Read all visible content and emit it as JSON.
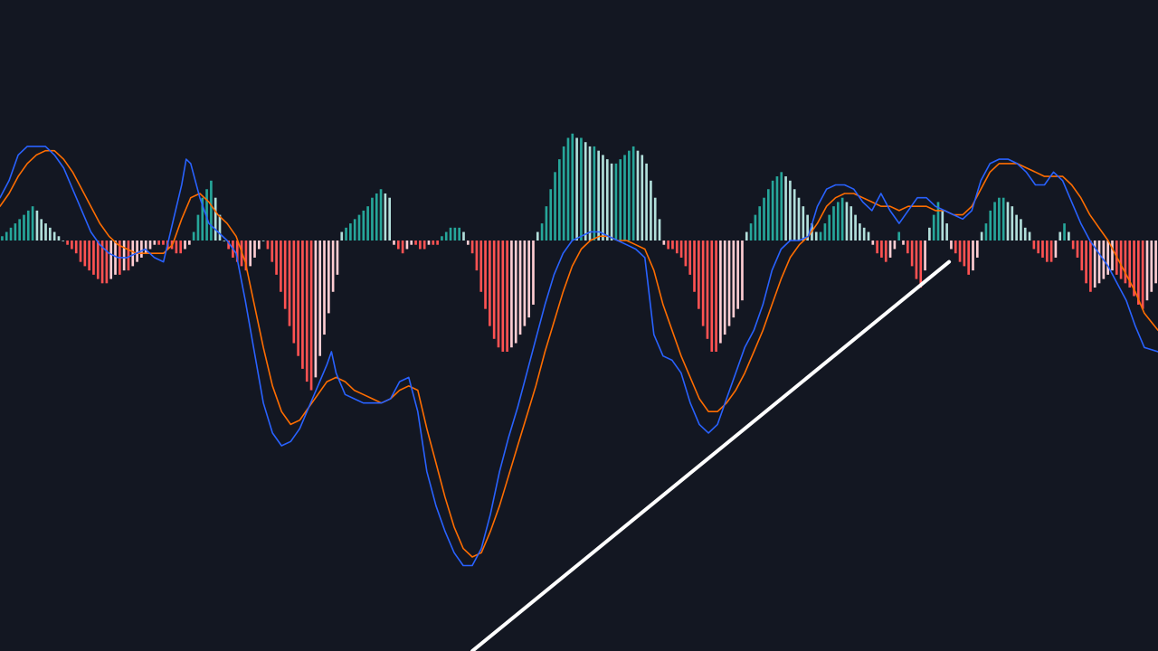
{
  "chart_data": {
    "type": "line",
    "indicator": "MACD",
    "title": "",
    "xlabel": "",
    "ylabel": "",
    "grid": false,
    "legend": "none",
    "colors": {
      "background": "#131722",
      "macd_line": "#2962ff",
      "signal_line": "#ff6d00",
      "hist_pos_strong": "#26a69a",
      "hist_pos_weak": "#b2dfdb",
      "hist_neg_strong": "#ff5252",
      "hist_neg_weak": "#ffcdd2",
      "trendline": "#ffffff"
    },
    "x_range": [
      0,
      255
    ],
    "y_range": [
      -100,
      30
    ],
    "series": [
      {
        "key": "macd",
        "points": [
          [
            0,
            10
          ],
          [
            2,
            14
          ],
          [
            4,
            20
          ],
          [
            6,
            22
          ],
          [
            8,
            22
          ],
          [
            10,
            22
          ],
          [
            12,
            20
          ],
          [
            14,
            17
          ],
          [
            16,
            12
          ],
          [
            18,
            7
          ],
          [
            20,
            2
          ],
          [
            22,
            -1
          ],
          [
            24,
            -3
          ],
          [
            26,
            -4
          ],
          [
            28,
            -4
          ],
          [
            30,
            -3
          ],
          [
            32,
            -2
          ],
          [
            34,
            -4
          ],
          [
            36,
            -5
          ],
          [
            38,
            4
          ],
          [
            40,
            13
          ],
          [
            41,
            19
          ],
          [
            42,
            18
          ],
          [
            44,
            10
          ],
          [
            46,
            4
          ],
          [
            48,
            2
          ],
          [
            50,
            0
          ],
          [
            52,
            -3
          ],
          [
            54,
            -14
          ],
          [
            56,
            -26
          ],
          [
            58,
            -38
          ],
          [
            60,
            -45
          ],
          [
            62,
            -48
          ],
          [
            64,
            -47
          ],
          [
            66,
            -44
          ],
          [
            68,
            -39
          ],
          [
            70,
            -34
          ],
          [
            72,
            -29
          ],
          [
            73,
            -26
          ],
          [
            74,
            -31
          ],
          [
            76,
            -36
          ],
          [
            78,
            -37
          ],
          [
            80,
            -38
          ],
          [
            82,
            -38
          ],
          [
            84,
            -38
          ],
          [
            86,
            -37
          ],
          [
            88,
            -33
          ],
          [
            90,
            -32
          ],
          [
            92,
            -40
          ],
          [
            94,
            -54
          ],
          [
            96,
            -62
          ],
          [
            98,
            -68
          ],
          [
            100,
            -73
          ],
          [
            102,
            -76
          ],
          [
            104,
            -76
          ],
          [
            106,
            -72
          ],
          [
            108,
            -64
          ],
          [
            110,
            -54
          ],
          [
            112,
            -46
          ],
          [
            114,
            -39
          ],
          [
            116,
            -31
          ],
          [
            118,
            -23
          ],
          [
            120,
            -15
          ],
          [
            122,
            -8
          ],
          [
            124,
            -3
          ],
          [
            126,
            0
          ],
          [
            128,
            1
          ],
          [
            130,
            2
          ],
          [
            132,
            2
          ],
          [
            134,
            1
          ],
          [
            136,
            0
          ],
          [
            138,
            -1
          ],
          [
            140,
            -2
          ],
          [
            142,
            -4
          ],
          [
            144,
            -22
          ],
          [
            146,
            -27
          ],
          [
            148,
            -28
          ],
          [
            150,
            -31
          ],
          [
            152,
            -38
          ],
          [
            154,
            -43
          ],
          [
            156,
            -45
          ],
          [
            158,
            -43
          ],
          [
            160,
            -37
          ],
          [
            162,
            -31
          ],
          [
            164,
            -25
          ],
          [
            166,
            -21
          ],
          [
            168,
            -15
          ],
          [
            170,
            -7
          ],
          [
            172,
            -2
          ],
          [
            174,
            0
          ],
          [
            176,
            0
          ],
          [
            178,
            1
          ],
          [
            180,
            8
          ],
          [
            182,
            12
          ],
          [
            184,
            13
          ],
          [
            186,
            13
          ],
          [
            188,
            12
          ],
          [
            190,
            9
          ],
          [
            192,
            7
          ],
          [
            194,
            11
          ],
          [
            196,
            7
          ],
          [
            198,
            4
          ],
          [
            200,
            7
          ],
          [
            202,
            10
          ],
          [
            204,
            10
          ],
          [
            206,
            8
          ],
          [
            208,
            7
          ],
          [
            210,
            6
          ],
          [
            212,
            5
          ],
          [
            214,
            7
          ],
          [
            216,
            14
          ],
          [
            218,
            18
          ],
          [
            220,
            19
          ],
          [
            222,
            19
          ],
          [
            224,
            18
          ],
          [
            226,
            16
          ],
          [
            228,
            13
          ],
          [
            230,
            13
          ],
          [
            232,
            16
          ],
          [
            234,
            14
          ],
          [
            236,
            9
          ],
          [
            238,
            4
          ],
          [
            240,
            0
          ],
          [
            242,
            -3
          ],
          [
            244,
            -6
          ],
          [
            246,
            -10
          ],
          [
            248,
            -14
          ],
          [
            250,
            -20
          ],
          [
            252,
            -25
          ],
          [
            255,
            -26
          ]
        ]
      },
      {
        "key": "signal",
        "points": [
          [
            0,
            8
          ],
          [
            2,
            11
          ],
          [
            4,
            15
          ],
          [
            6,
            18
          ],
          [
            8,
            20
          ],
          [
            10,
            21
          ],
          [
            12,
            21
          ],
          [
            14,
            19
          ],
          [
            16,
            16
          ],
          [
            18,
            12
          ],
          [
            20,
            8
          ],
          [
            22,
            4
          ],
          [
            24,
            1
          ],
          [
            26,
            -1
          ],
          [
            28,
            -2
          ],
          [
            30,
            -3
          ],
          [
            32,
            -3
          ],
          [
            34,
            -3
          ],
          [
            36,
            -3
          ],
          [
            38,
            -1
          ],
          [
            40,
            5
          ],
          [
            42,
            10
          ],
          [
            44,
            11
          ],
          [
            46,
            9
          ],
          [
            48,
            6
          ],
          [
            50,
            4
          ],
          [
            52,
            1
          ],
          [
            54,
            -5
          ],
          [
            56,
            -15
          ],
          [
            58,
            -25
          ],
          [
            60,
            -34
          ],
          [
            62,
            -40
          ],
          [
            64,
            -43
          ],
          [
            66,
            -42
          ],
          [
            68,
            -39
          ],
          [
            70,
            -36
          ],
          [
            72,
            -33
          ],
          [
            74,
            -32
          ],
          [
            76,
            -33
          ],
          [
            78,
            -35
          ],
          [
            80,
            -36
          ],
          [
            82,
            -37
          ],
          [
            84,
            -38
          ],
          [
            86,
            -37
          ],
          [
            88,
            -35
          ],
          [
            90,
            -34
          ],
          [
            92,
            -35
          ],
          [
            94,
            -44
          ],
          [
            96,
            -52
          ],
          [
            98,
            -60
          ],
          [
            100,
            -67
          ],
          [
            102,
            -72
          ],
          [
            104,
            -74
          ],
          [
            106,
            -73
          ],
          [
            108,
            -68
          ],
          [
            110,
            -62
          ],
          [
            112,
            -55
          ],
          [
            114,
            -48
          ],
          [
            116,
            -41
          ],
          [
            118,
            -34
          ],
          [
            120,
            -26
          ],
          [
            122,
            -19
          ],
          [
            124,
            -12
          ],
          [
            126,
            -6
          ],
          [
            128,
            -2
          ],
          [
            130,
            0
          ],
          [
            132,
            1
          ],
          [
            134,
            1
          ],
          [
            136,
            0
          ],
          [
            138,
            0
          ],
          [
            140,
            -1
          ],
          [
            142,
            -2
          ],
          [
            144,
            -7
          ],
          [
            146,
            -15
          ],
          [
            148,
            -21
          ],
          [
            150,
            -27
          ],
          [
            152,
            -32
          ],
          [
            154,
            -37
          ],
          [
            156,
            -40
          ],
          [
            158,
            -40
          ],
          [
            160,
            -38
          ],
          [
            162,
            -35
          ],
          [
            164,
            -31
          ],
          [
            166,
            -26
          ],
          [
            168,
            -21
          ],
          [
            170,
            -15
          ],
          [
            172,
            -9
          ],
          [
            174,
            -4
          ],
          [
            176,
            -1
          ],
          [
            178,
            1
          ],
          [
            180,
            4
          ],
          [
            182,
            8
          ],
          [
            184,
            10
          ],
          [
            186,
            11
          ],
          [
            188,
            11
          ],
          [
            190,
            10
          ],
          [
            192,
            9
          ],
          [
            194,
            8
          ],
          [
            196,
            8
          ],
          [
            198,
            7
          ],
          [
            200,
            8
          ],
          [
            202,
            8
          ],
          [
            204,
            8
          ],
          [
            206,
            7
          ],
          [
            208,
            7
          ],
          [
            210,
            6
          ],
          [
            212,
            6
          ],
          [
            214,
            8
          ],
          [
            216,
            12
          ],
          [
            218,
            16
          ],
          [
            220,
            18
          ],
          [
            222,
            18
          ],
          [
            224,
            18
          ],
          [
            226,
            17
          ],
          [
            228,
            16
          ],
          [
            230,
            15
          ],
          [
            232,
            15
          ],
          [
            234,
            15
          ],
          [
            236,
            13
          ],
          [
            238,
            10
          ],
          [
            240,
            6
          ],
          [
            242,
            3
          ],
          [
            244,
            0
          ],
          [
            246,
            -4
          ],
          [
            248,
            -8
          ],
          [
            250,
            -12
          ],
          [
            252,
            -17
          ],
          [
            255,
            -21
          ]
        ]
      }
    ],
    "histogram": [
      1,
      2,
      3,
      4,
      5,
      6,
      7,
      8,
      7,
      5,
      4,
      3,
      2,
      1,
      0,
      -1,
      -2,
      -3,
      -5,
      -6,
      -7,
      -8,
      -9,
      -10,
      -10,
      -9,
      -8,
      -8,
      -7,
      -7,
      -6,
      -5,
      -4,
      -3,
      -2,
      -1,
      -1,
      -1,
      -2,
      -2,
      -3,
      -3,
      -2,
      -1,
      2,
      6,
      10,
      12,
      14,
      10,
      6,
      0,
      -2,
      -4,
      -5,
      -6,
      -7,
      -6,
      -4,
      -2,
      0,
      -2,
      -5,
      -8,
      -12,
      -16,
      -20,
      -24,
      -27,
      -30,
      -33,
      -35,
      -32,
      -27,
      -22,
      -17,
      -12,
      -8,
      2,
      3,
      4,
      5,
      6,
      7,
      8,
      10,
      11,
      12,
      11,
      10,
      -1,
      -2,
      -3,
      -2,
      -1,
      -1,
      -2,
      -2,
      -1,
      -1,
      -1,
      1,
      2,
      3,
      3,
      3,
      2,
      -1,
      -3,
      -7,
      -12,
      -16,
      -20,
      -23,
      -25,
      -26,
      -26,
      -25,
      -24,
      -22,
      -20,
      -18,
      -15,
      2,
      4,
      8,
      12,
      16,
      19,
      22,
      24,
      25,
      24,
      24,
      23,
      22,
      22,
      21,
      20,
      19,
      18,
      18,
      19,
      20,
      21,
      22,
      21,
      20,
      18,
      14,
      10,
      5,
      -1,
      -2,
      -2,
      -3,
      -4,
      -6,
      -8,
      -12,
      -16,
      -20,
      -23,
      -26,
      -26,
      -24,
      -22,
      -20,
      -18,
      -16,
      -14,
      2,
      4,
      6,
      8,
      10,
      12,
      14,
      15,
      16,
      15,
      14,
      12,
      10,
      8,
      6,
      4,
      2,
      2,
      4,
      6,
      8,
      9,
      10,
      9,
      8,
      6,
      4,
      3,
      2,
      -1,
      -3,
      -4,
      -5,
      -4,
      -2,
      2,
      -1,
      -3,
      -6,
      -9,
      -11,
      -7,
      3,
      6,
      9,
      7,
      4,
      -2,
      -3,
      -5,
      -6,
      -8,
      -7,
      -4,
      2,
      4,
      7,
      9,
      10,
      10,
      9,
      8,
      6,
      5,
      3,
      2,
      -2,
      -3,
      -4,
      -5,
      -5,
      -4,
      2,
      4,
      2,
      -2,
      -4,
      -7,
      -10,
      -12,
      -11,
      -10,
      -9,
      -8,
      -7,
      -8,
      -9,
      -10,
      -11,
      -13,
      -15,
      -16,
      -14,
      -12,
      -10
    ],
    "trendline": {
      "start": [
        104,
        -96
      ],
      "end": [
        209,
        -5
      ]
    }
  }
}
